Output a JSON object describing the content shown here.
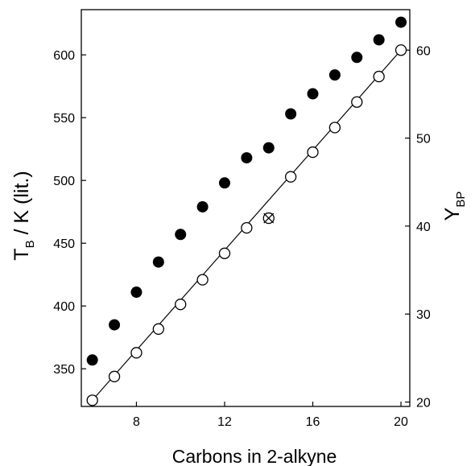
{
  "chart_data": {
    "type": "scatter",
    "title": "",
    "xlabel": "Carbons in 2-alkyne",
    "ylabel_left": {
      "main": "T",
      "sub": "B",
      "rest": " / K (lit.)"
    },
    "ylabel_right": {
      "main": "Y",
      "sub": "BP"
    },
    "xlim": [
      5.5,
      20.4
    ],
    "ylim_left": [
      320,
      636
    ],
    "ylim_right": [
      19.5,
      64.6
    ],
    "x_ticks": [
      8,
      12,
      16,
      20
    ],
    "y_ticks_left": [
      350,
      400,
      450,
      500,
      550,
      600
    ],
    "y_ticks_right": [
      20,
      30,
      40,
      50,
      60
    ],
    "grid": false,
    "series": [
      {
        "marker": "filled-circle",
        "axis": "left",
        "x": [
          6,
          7,
          8,
          9,
          10,
          11,
          12,
          13,
          14,
          15,
          16,
          17,
          18,
          19,
          20
        ],
        "y": [
          357,
          385,
          411,
          435,
          457,
          479,
          498,
          518,
          526,
          553,
          569,
          584,
          598,
          612,
          626
        ]
      },
      {
        "marker": "open-circle",
        "axis": "right",
        "x": [
          6,
          7,
          8,
          9,
          10,
          11,
          12,
          13,
          14,
          15,
          16,
          17,
          18,
          19,
          20
        ],
        "y": [
          20.2,
          22.9,
          25.6,
          28.3,
          31.1,
          33.9,
          36.9,
          39.8,
          40.9,
          45.6,
          48.4,
          51.2,
          54.1,
          57.0,
          60.0
        ]
      }
    ],
    "fit_line": {
      "axis": "right",
      "x": [
        6,
        20
      ],
      "y": [
        20.2,
        60.0
      ]
    },
    "outlier": {
      "marker": "cross",
      "axis": "right",
      "x": 14,
      "y": 40.9
    }
  }
}
